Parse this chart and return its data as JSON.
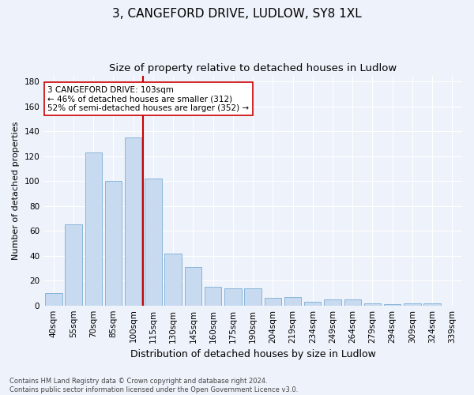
{
  "title": "3, CANGEFORD DRIVE, LUDLOW, SY8 1XL",
  "subtitle": "Size of property relative to detached houses in Ludlow",
  "xlabel": "Distribution of detached houses by size in Ludlow",
  "ylabel": "Number of detached properties",
  "categories": [
    "40sqm",
    "55sqm",
    "70sqm",
    "85sqm",
    "100sqm",
    "115sqm",
    "130sqm",
    "145sqm",
    "160sqm",
    "175sqm",
    "190sqm",
    "204sqm",
    "219sqm",
    "234sqm",
    "249sqm",
    "264sqm",
    "279sqm",
    "294sqm",
    "309sqm",
    "324sqm",
    "339sqm"
  ],
  "values": [
    10,
    65,
    123,
    100,
    135,
    102,
    42,
    31,
    15,
    14,
    14,
    6,
    7,
    3,
    5,
    5,
    2,
    1,
    2,
    2,
    0
  ],
  "bar_color": "#c8daf0",
  "bar_edge_color": "#7aaed4",
  "vline_x_index": 4.5,
  "vline_color": "#cc0000",
  "annotation_text": "3 CANGEFORD DRIVE: 103sqm\n← 46% of detached houses are smaller (312)\n52% of semi-detached houses are larger (352) →",
  "annotation_box_color": "#ffffff",
  "annotation_box_edge_color": "#cc0000",
  "ylim": [
    0,
    185
  ],
  "yticks": [
    0,
    20,
    40,
    60,
    80,
    100,
    120,
    140,
    160,
    180
  ],
  "title_fontsize": 11,
  "subtitle_fontsize": 9.5,
  "xlabel_fontsize": 9,
  "ylabel_fontsize": 8,
  "tick_fontsize": 7.5,
  "annotation_fontsize": 7.5,
  "footer_text": "Contains HM Land Registry data © Crown copyright and database right 2024.\nContains public sector information licensed under the Open Government Licence v3.0.",
  "footer_fontsize": 6,
  "background_color": "#eef2fa",
  "grid_color": "#ffffff"
}
